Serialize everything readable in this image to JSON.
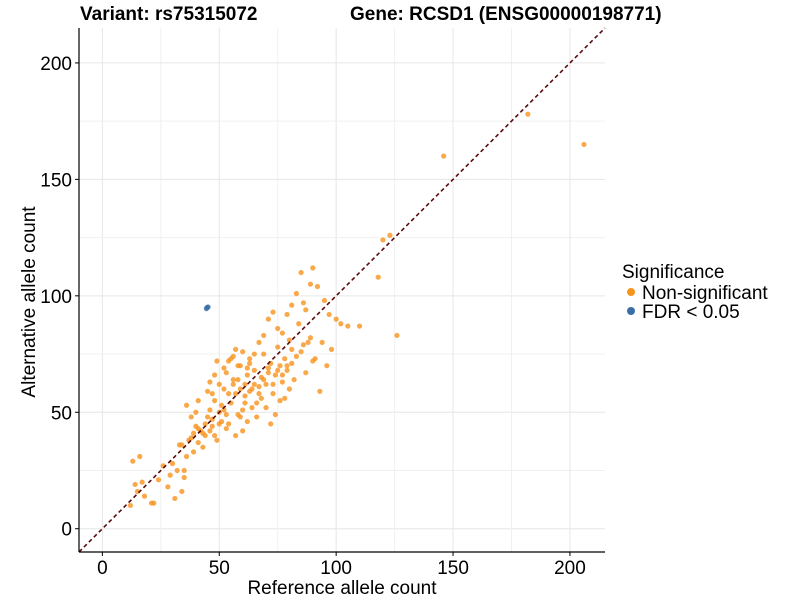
{
  "titles": {
    "left": "Variant: rs75315072",
    "right": "Gene: RCSD1 (ENSG00000198771)"
  },
  "chart_data": {
    "type": "scatter",
    "xlabel": "Reference allele count",
    "ylabel": "Alternative allele count",
    "xlim": [
      -10,
      215
    ],
    "ylim": [
      -10,
      215
    ],
    "x_ticks": [
      0,
      50,
      100,
      150,
      200
    ],
    "y_ticks": [
      0,
      50,
      100,
      150,
      200
    ],
    "grid": true,
    "reference_line": {
      "type": "y=x",
      "style": "dashed",
      "color": "#5a0a0a"
    },
    "legend": {
      "title": "Significance",
      "position": "right",
      "entries": [
        {
          "label": "Non-significant",
          "color": "#F7941D"
        },
        {
          "label": "FDR < 0.05",
          "color": "#3B6EA8"
        }
      ]
    },
    "series": [
      {
        "name": "Non-significant",
        "color": "#F7941D",
        "points": [
          [
            12,
            10
          ],
          [
            13,
            29
          ],
          [
            14,
            19
          ],
          [
            15,
            16
          ],
          [
            16,
            31
          ],
          [
            17,
            20
          ],
          [
            18,
            14
          ],
          [
            21,
            11
          ],
          [
            22,
            11
          ],
          [
            24,
            21
          ],
          [
            26,
            27
          ],
          [
            28,
            18
          ],
          [
            29,
            23
          ],
          [
            30,
            28
          ],
          [
            31,
            13
          ],
          [
            32,
            25
          ],
          [
            33,
            36
          ],
          [
            34,
            36
          ],
          [
            35,
            25
          ],
          [
            36,
            31
          ],
          [
            37,
            38
          ],
          [
            38,
            39
          ],
          [
            39,
            41
          ],
          [
            40,
            44
          ],
          [
            41,
            43
          ],
          [
            42,
            42
          ],
          [
            43,
            41
          ],
          [
            44,
            45
          ],
          [
            35,
            22
          ],
          [
            34,
            16
          ],
          [
            38,
            48
          ],
          [
            36,
            53
          ],
          [
            40,
            50
          ],
          [
            41,
            55
          ],
          [
            45,
            48
          ],
          [
            46,
            42
          ],
          [
            47,
            47
          ],
          [
            48,
            55
          ],
          [
            45,
            59
          ],
          [
            46,
            63
          ],
          [
            47,
            58
          ],
          [
            48,
            66
          ],
          [
            49,
            72
          ],
          [
            50,
            50
          ],
          [
            51,
            53
          ],
          [
            52,
            60
          ],
          [
            53,
            49
          ],
          [
            54,
            45
          ],
          [
            55,
            54
          ],
          [
            56,
            62
          ],
          [
            57,
            58
          ],
          [
            58,
            64
          ],
          [
            59,
            70
          ],
          [
            60,
            51
          ],
          [
            61,
            57
          ],
          [
            62,
            66
          ],
          [
            63,
            73
          ],
          [
            64,
            60
          ],
          [
            65,
            68
          ],
          [
            66,
            54
          ],
          [
            67,
            61
          ],
          [
            68,
            65
          ],
          [
            69,
            75
          ],
          [
            70,
            62
          ],
          [
            71,
            69
          ],
          [
            72,
            71
          ],
          [
            73,
            58
          ],
          [
            74,
            66
          ],
          [
            75,
            78
          ],
          [
            76,
            70
          ],
          [
            77,
            63
          ],
          [
            78,
            73
          ],
          [
            79,
            68
          ],
          [
            80,
            81
          ],
          [
            81,
            71
          ],
          [
            82,
            64
          ],
          [
            83,
            74
          ],
          [
            84,
            88
          ],
          [
            85,
            76
          ],
          [
            86,
            79
          ],
          [
            87,
            67
          ],
          [
            88,
            80
          ],
          [
            89,
            82
          ],
          [
            90,
            72
          ],
          [
            91,
            73
          ],
          [
            93,
            59
          ],
          [
            94,
            80
          ],
          [
            96,
            70
          ],
          [
            98,
            77
          ],
          [
            50,
            45
          ],
          [
            52,
            51
          ],
          [
            54,
            58
          ],
          [
            56,
            64
          ],
          [
            58,
            49
          ],
          [
            60,
            42
          ],
          [
            62,
            46
          ],
          [
            64,
            52
          ],
          [
            66,
            48
          ],
          [
            68,
            56
          ],
          [
            70,
            52
          ],
          [
            72,
            45
          ],
          [
            74,
            49
          ],
          [
            76,
            55
          ],
          [
            78,
            56
          ],
          [
            80,
            60
          ],
          [
            53,
            67
          ],
          [
            55,
            73
          ],
          [
            57,
            77
          ],
          [
            59,
            60
          ],
          [
            61,
            62
          ],
          [
            63,
            71
          ],
          [
            65,
            75
          ],
          [
            67,
            80
          ],
          [
            69,
            83
          ],
          [
            71,
            90
          ],
          [
            73,
            93
          ],
          [
            75,
            86
          ],
          [
            77,
            84
          ],
          [
            79,
            92
          ],
          [
            81,
            96
          ],
          [
            83,
            101
          ],
          [
            85,
            110
          ],
          [
            86,
            97
          ],
          [
            87,
            94
          ],
          [
            89,
            105
          ],
          [
            90,
            112
          ],
          [
            92,
            104
          ],
          [
            95,
            98
          ],
          [
            97,
            92
          ],
          [
            100,
            90
          ],
          [
            102,
            88
          ],
          [
            105,
            87
          ],
          [
            110,
            87
          ],
          [
            118,
            108
          ],
          [
            120,
            124
          ],
          [
            123,
            126
          ],
          [
            126,
            83
          ],
          [
            146,
            160
          ],
          [
            182,
            178
          ],
          [
            206,
            165
          ],
          [
            46,
            51
          ],
          [
            48,
            40
          ],
          [
            49,
            38
          ],
          [
            51,
            46
          ],
          [
            53,
            43
          ],
          [
            57,
            40
          ],
          [
            59,
            48
          ],
          [
            61,
            54
          ],
          [
            63,
            59
          ],
          [
            65,
            62
          ],
          [
            67,
            58
          ],
          [
            69,
            64
          ],
          [
            71,
            67
          ],
          [
            73,
            62
          ],
          [
            75,
            68
          ],
          [
            77,
            66
          ],
          [
            79,
            70
          ],
          [
            81,
            77
          ],
          [
            43,
            35
          ],
          [
            39,
            33
          ],
          [
            41,
            37
          ],
          [
            44,
            40
          ],
          [
            47,
            44
          ],
          [
            50,
            62
          ],
          [
            52,
            69
          ],
          [
            54,
            72
          ],
          [
            56,
            74
          ],
          [
            58,
            70
          ],
          [
            60,
            76
          ],
          [
            62,
            69
          ]
        ]
      },
      {
        "name": "FDR < 0.05",
        "color": "#3B6EA8",
        "points": [
          [
            44.5,
            94.5
          ],
          [
            45.2,
            95.2
          ],
          [
            44.8,
            95.0
          ]
        ]
      }
    ]
  }
}
